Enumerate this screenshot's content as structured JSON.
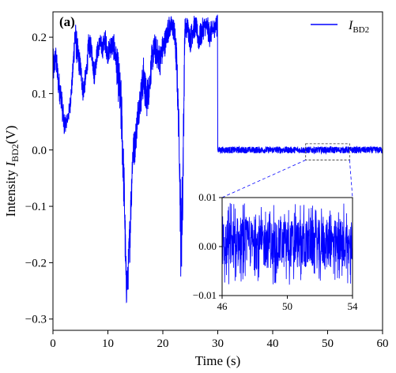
{
  "chart_data": {
    "type": "line",
    "panel_label": "(a)",
    "xlabel": "Time (s)",
    "ylabel": "Intensity",
    "ylabel_symbol": "I",
    "ylabel_sub": "BD2",
    "ylabel_unit": "(V)",
    "xlim": [
      0,
      60
    ],
    "ylim": [
      -0.32,
      0.245
    ],
    "x_ticks": [
      0,
      10,
      20,
      30,
      40,
      50,
      60
    ],
    "y_ticks": [
      -0.3,
      -0.2,
      -0.1,
      0.0,
      0.1,
      0.2
    ],
    "y_tick_labels": [
      "−0.3",
      "−0.2",
      "−0.1",
      "0.0",
      "0.1",
      "0.2"
    ],
    "legend_position": "top-right",
    "series": [
      {
        "name": "I_BD2",
        "name_symbol": "I",
        "name_sub": "BD2",
        "color": "#0000ff",
        "envelope": {
          "x": [
            0,
            0.5,
            1,
            1.5,
            2,
            2.5,
            3,
            3.5,
            4,
            4.5,
            5,
            5.5,
            6,
            6.5,
            7,
            7.5,
            8,
            8.5,
            9,
            9.5,
            10,
            10.5,
            11,
            11.5,
            12,
            12.5,
            13,
            13.3,
            13.6,
            14,
            14.5,
            15,
            15.5,
            16,
            16.5,
            17,
            17.5,
            18,
            18.5,
            19,
            19.5,
            20,
            20.5,
            21,
            21.5,
            22,
            22.5,
            23,
            23.3,
            23.6,
            24,
            24.5,
            25,
            25.5,
            26,
            26.5,
            27,
            27.5,
            28,
            28.5,
            29,
            29.5,
            29.9
          ],
          "high": [
            0.18,
            0.19,
            0.15,
            0.12,
            0.07,
            0.06,
            0.09,
            0.14,
            0.24,
            0.2,
            0.17,
            0.13,
            0.15,
            0.21,
            0.2,
            0.16,
            0.19,
            0.21,
            0.2,
            0.22,
            0.19,
            0.21,
            0.21,
            0.19,
            0.17,
            0.12,
            -0.03,
            -0.18,
            -0.2,
            -0.1,
            0.03,
            0.05,
            0.1,
            0.13,
            0.17,
            0.13,
            0.14,
            0.19,
            0.21,
            0.2,
            0.19,
            0.21,
            0.22,
            0.24,
            0.24,
            0.24,
            0.2,
            0.05,
            -0.07,
            0.0,
            0.24,
            0.24,
            0.22,
            0.24,
            0.24,
            0.22,
            0.23,
            0.24,
            0.24,
            0.23,
            0.23,
            0.24,
            0.24
          ],
          "low": [
            0.1,
            0.14,
            0.09,
            0.07,
            0.02,
            0.04,
            0.05,
            0.1,
            0.17,
            0.14,
            0.12,
            0.08,
            0.11,
            0.16,
            0.16,
            0.11,
            0.15,
            0.17,
            0.16,
            0.17,
            0.15,
            0.16,
            0.16,
            0.13,
            0.07,
            -0.01,
            -0.14,
            -0.29,
            -0.27,
            -0.2,
            -0.05,
            -0.02,
            0.04,
            0.06,
            0.09,
            0.05,
            0.08,
            0.13,
            0.15,
            0.14,
            0.13,
            0.15,
            0.17,
            0.19,
            0.2,
            0.19,
            0.12,
            -0.03,
            -0.26,
            -0.17,
            0.18,
            0.2,
            0.17,
            0.19,
            0.2,
            0.17,
            0.18,
            0.2,
            0.2,
            0.18,
            0.19,
            0.2,
            0.2
          ]
        },
        "steady_state": {
          "x_range": [
            30,
            60
          ],
          "center": 0.0,
          "noise_amplitude": 0.005
        }
      }
    ],
    "inset": {
      "xlim": [
        46,
        54
      ],
      "ylim": [
        -0.01,
        0.01
      ],
      "x_ticks": [
        46,
        50,
        54
      ],
      "y_ticks": [
        -0.01,
        0.0,
        0.01
      ],
      "y_tick_labels": [
        "−0.01",
        "0.00",
        "0.01"
      ],
      "noise_band": [
        -0.0045,
        0.0055
      ],
      "zoom_box": {
        "x": [
          46,
          54
        ],
        "y": [
          -0.008,
          0.004
        ]
      }
    }
  }
}
